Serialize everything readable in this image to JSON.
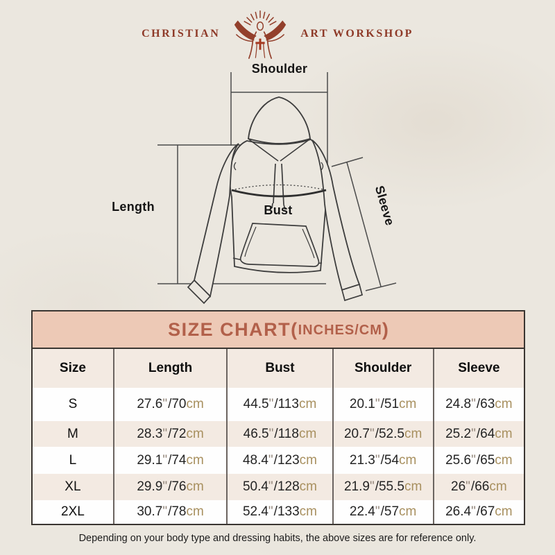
{
  "logo": {
    "left": "CHRISTIAN",
    "right": "ART WORKSHOP"
  },
  "diagram": {
    "labels": {
      "shoulder": "Shoulder",
      "length": "Length",
      "bust": "Bust",
      "sleeve": "Sleeve"
    }
  },
  "size_chart": {
    "title_main": "SIZE CHART(",
    "title_unit": "INCHES/CM",
    "title_close": ")",
    "columns": [
      "Size",
      "Length",
      "Bust",
      "Shoulder",
      "Sleeve"
    ],
    "units": {
      "inch_mark": "\"",
      "separator": "/",
      "cm_label": "cm"
    },
    "rows": [
      {
        "size": "S",
        "length": {
          "in": "27.6",
          "cm": "70"
        },
        "bust": {
          "in": "44.5",
          "cm": "113"
        },
        "shoulder": {
          "in": "20.1",
          "cm": "51"
        },
        "sleeve": {
          "in": "24.8",
          "cm": "63"
        }
      },
      {
        "size": "M",
        "length": {
          "in": "28.3",
          "cm": "72"
        },
        "bust": {
          "in": "46.5",
          "cm": "118"
        },
        "shoulder": {
          "in": "20.7",
          "cm": "52.5"
        },
        "sleeve": {
          "in": "25.2",
          "cm": "64"
        }
      },
      {
        "size": "L",
        "length": {
          "in": "29.1",
          "cm": "74"
        },
        "bust": {
          "in": "48.4",
          "cm": "123"
        },
        "shoulder": {
          "in": "21.3",
          "cm": "54"
        },
        "sleeve": {
          "in": "25.6",
          "cm": "65"
        }
      },
      {
        "size": "XL",
        "length": {
          "in": "29.9",
          "cm": "76"
        },
        "bust": {
          "in": "50.4",
          "cm": "128"
        },
        "shoulder": {
          "in": "21.9",
          "cm": "55.5"
        },
        "sleeve": {
          "in": "26",
          "cm": "66"
        }
      },
      {
        "size": "2XL",
        "length": {
          "in": "30.7",
          "cm": "78"
        },
        "bust": {
          "in": "52.4",
          "cm": "133"
        },
        "shoulder": {
          "in": "22.4",
          "cm": "57"
        },
        "sleeve": {
          "in": "26.4",
          "cm": "67"
        }
      }
    ]
  },
  "footnote": "Depending on your body type and dressing habits, the above sizes are for reference only.",
  "colors": {
    "page_background": "#ebe7df",
    "brand_maroon": "#8e3a28",
    "cross_red": "#a63a22",
    "banner_background": "#edc9b6",
    "banner_text": "#b2604a",
    "row_cream": "#f3eae2",
    "row_white": "#fefefe",
    "table_border_dark": "#3a3531",
    "column_divider": "#6b6460",
    "unit_cm_tan": "#a8905f",
    "inch_mark_gray": "#93867a",
    "line_art": "#3d3d3d"
  }
}
